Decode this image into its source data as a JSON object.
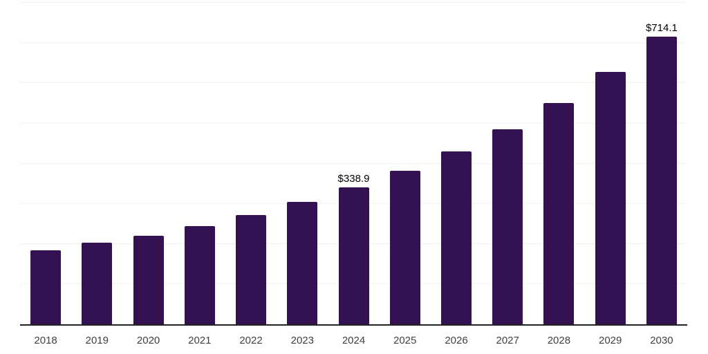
{
  "chart_data": {
    "type": "bar",
    "title": "",
    "xlabel": "",
    "ylabel": "",
    "categories": [
      "2018",
      "2019",
      "2020",
      "2021",
      "2022",
      "2023",
      "2024",
      "2025",
      "2026",
      "2027",
      "2028",
      "2029",
      "2030"
    ],
    "values": [
      183,
      202,
      220,
      243,
      270,
      303,
      338.9,
      380,
      429,
      484,
      550,
      627,
      714.1
    ],
    "point_labels": [
      "",
      "",
      "",
      "",
      "",
      "",
      "$338.9",
      "",
      "",
      "",
      "",
      "",
      "$714.1"
    ],
    "ylim": [
      0,
      800
    ],
    "gridline_interval": 100,
    "grid": "horizontal",
    "legend_position": "none",
    "y_axis_tick_labels_visible": false,
    "colors": {
      "bar": "#341150",
      "axis_line": "#222222",
      "gridline": "#f2f2f2",
      "x_tick_label": "#404040",
      "data_label": "#000000",
      "background": "#ffffff"
    }
  }
}
